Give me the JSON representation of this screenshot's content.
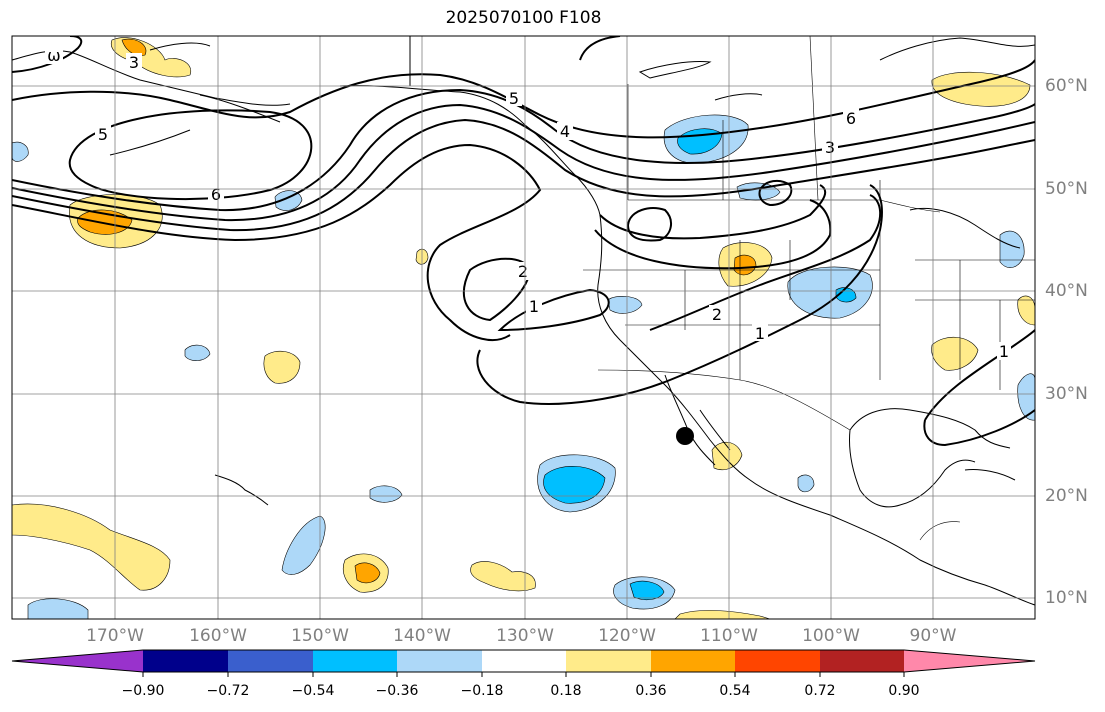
{
  "title": "2025070100 F108",
  "lat_labels": [
    "60°N",
    "50°N",
    "40°N",
    "30°N",
    "20°N",
    "10°N"
  ],
  "lon_labels": [
    "170°W",
    "160°W",
    "150°W",
    "140°W",
    "130°W",
    "120°W",
    "110°W",
    "100°W",
    "90°W"
  ],
  "contour_labels": [
    "3",
    "ω",
    "5",
    "6",
    "5",
    "4",
    "6",
    "3",
    "2",
    "1",
    "2",
    "1",
    "1"
  ],
  "colorbar": {
    "tick_labels": [
      "−0.90",
      "−0.72",
      "−0.54",
      "−0.36",
      "−0.18",
      "0.18",
      "0.36",
      "0.54",
      "0.72",
      "0.90"
    ],
    "colors": [
      "#9932cc",
      "#00008b",
      "#3a5fcd",
      "#00bfff",
      "#add8f8",
      "#ffffff",
      "#ffeb8a",
      "#ffa500",
      "#ff4500",
      "#b22222",
      "#ff88aa"
    ]
  },
  "marker": "storm-position-dot"
}
